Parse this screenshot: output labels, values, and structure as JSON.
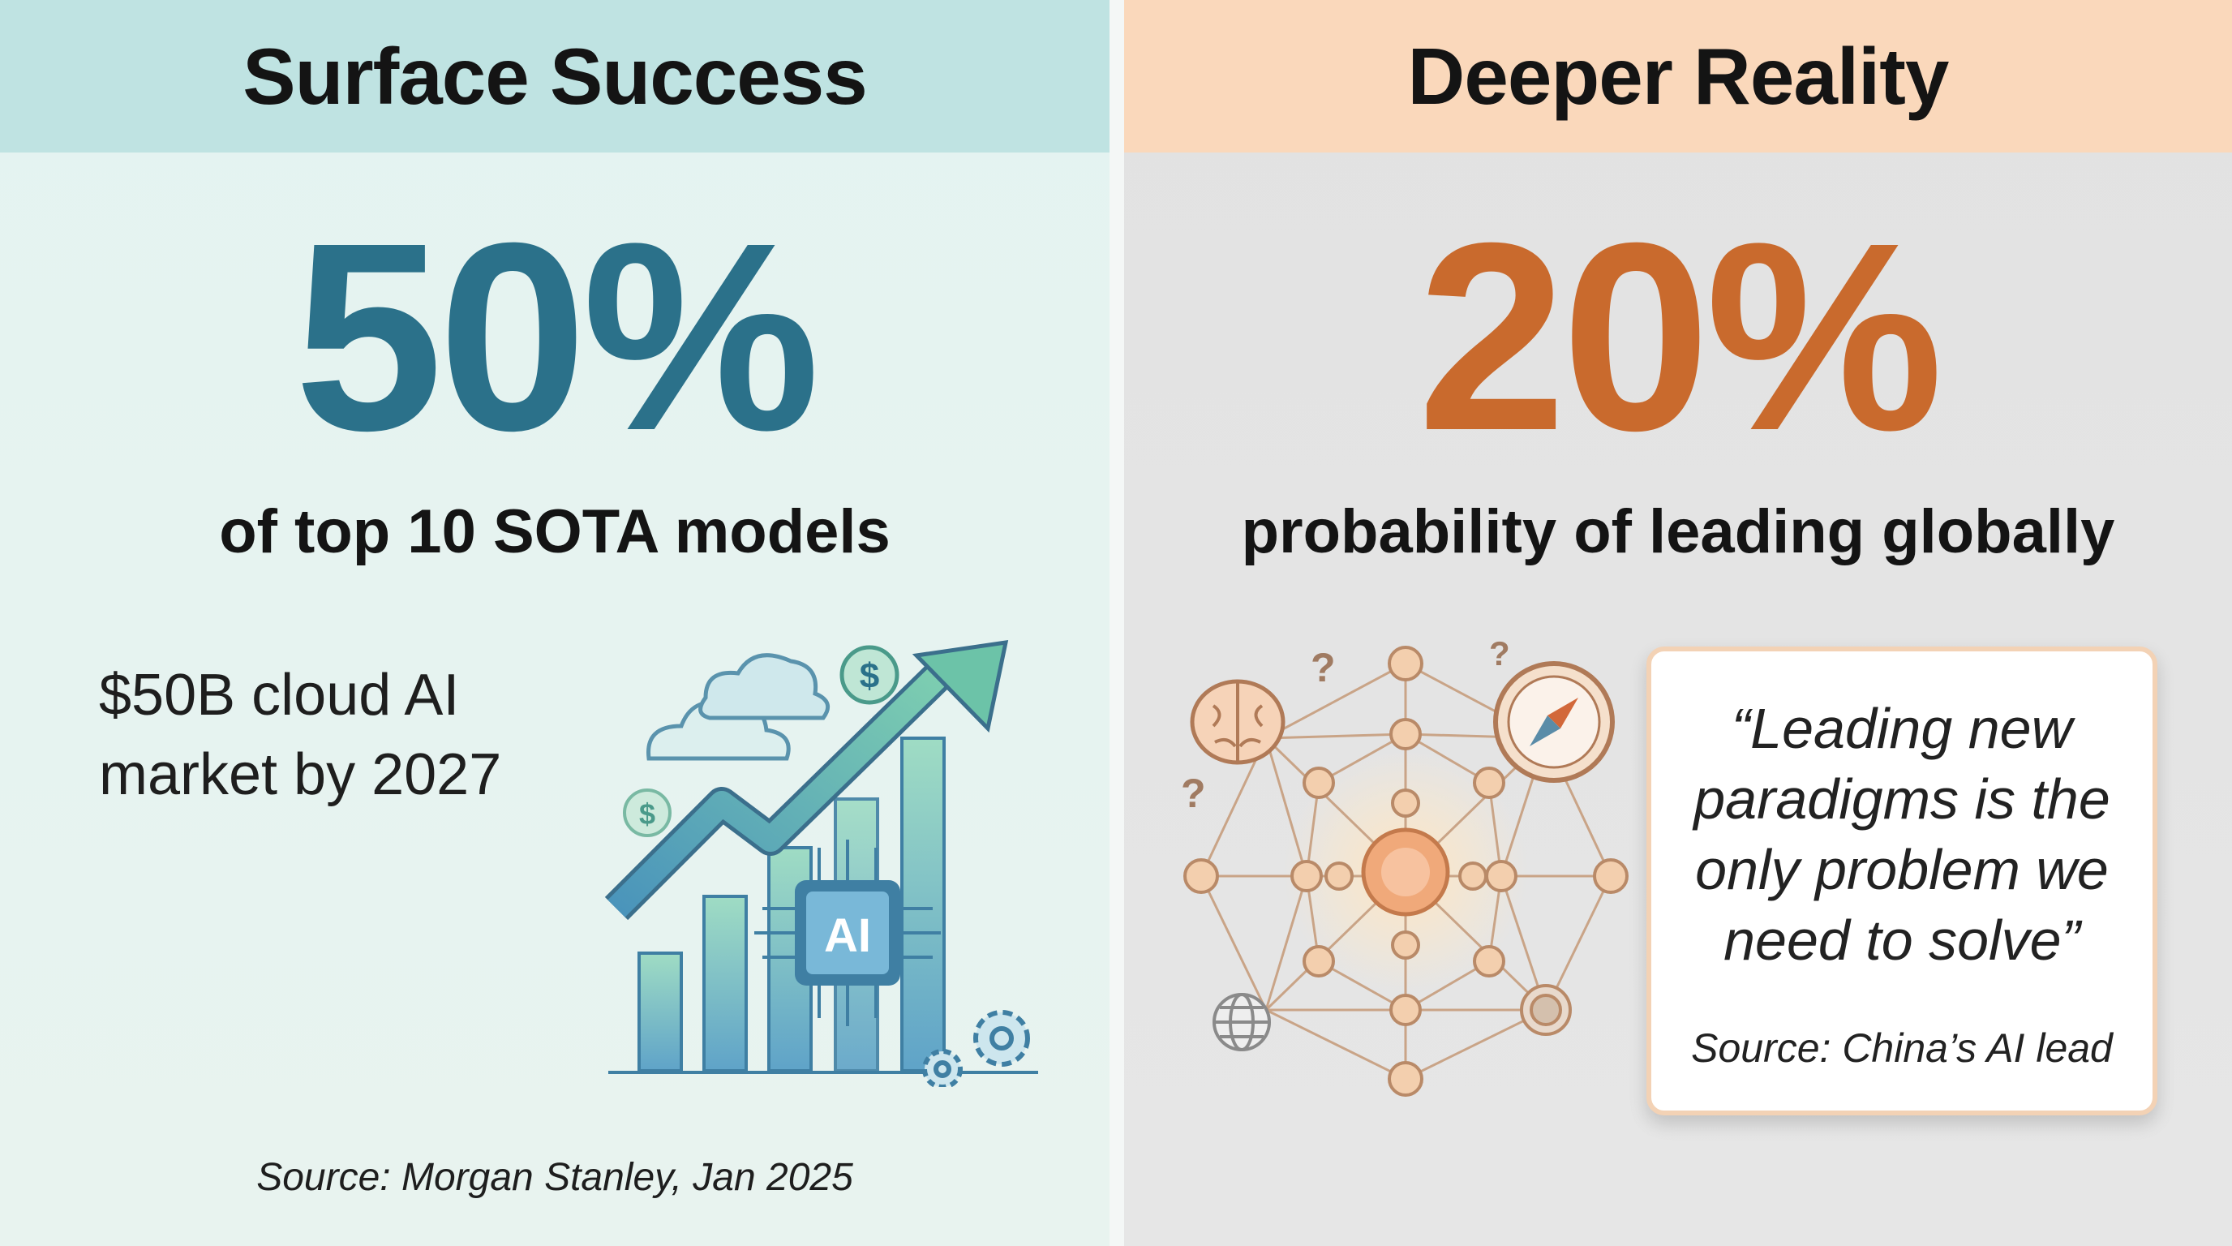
{
  "left": {
    "header": "Surface Success",
    "stat": "50%",
    "stat_caption": "of top 10 SOTA models",
    "market_line1": "$50B cloud AI",
    "market_line2": "market by 2027",
    "chip_label": "AI",
    "coin_symbol": "$",
    "source": "Source: Morgan Stanley, Jan 2025",
    "accent_color": "#2b718a",
    "header_color": "#bfe3e2",
    "illustration_icons": [
      "cloud-icon",
      "dollar-coin-icon",
      "trend-arrow-icon",
      "bar-chart-icon",
      "ai-chip-icon",
      "gear-icon"
    ]
  },
  "right": {
    "header": "Deeper Reality",
    "stat": "20%",
    "stat_caption": "probability of leading globally",
    "quote": "“Leading new paradigms is the only problem we need to solve”",
    "quote_source": "Source: China’s AI lead",
    "question_mark": "?",
    "accent_color": "#c96a2d",
    "header_color": "#fad8bb",
    "illustration_icons": [
      "brain-icon",
      "compass-icon",
      "globe-icon",
      "network-icon",
      "question-mark-icon"
    ]
  }
}
